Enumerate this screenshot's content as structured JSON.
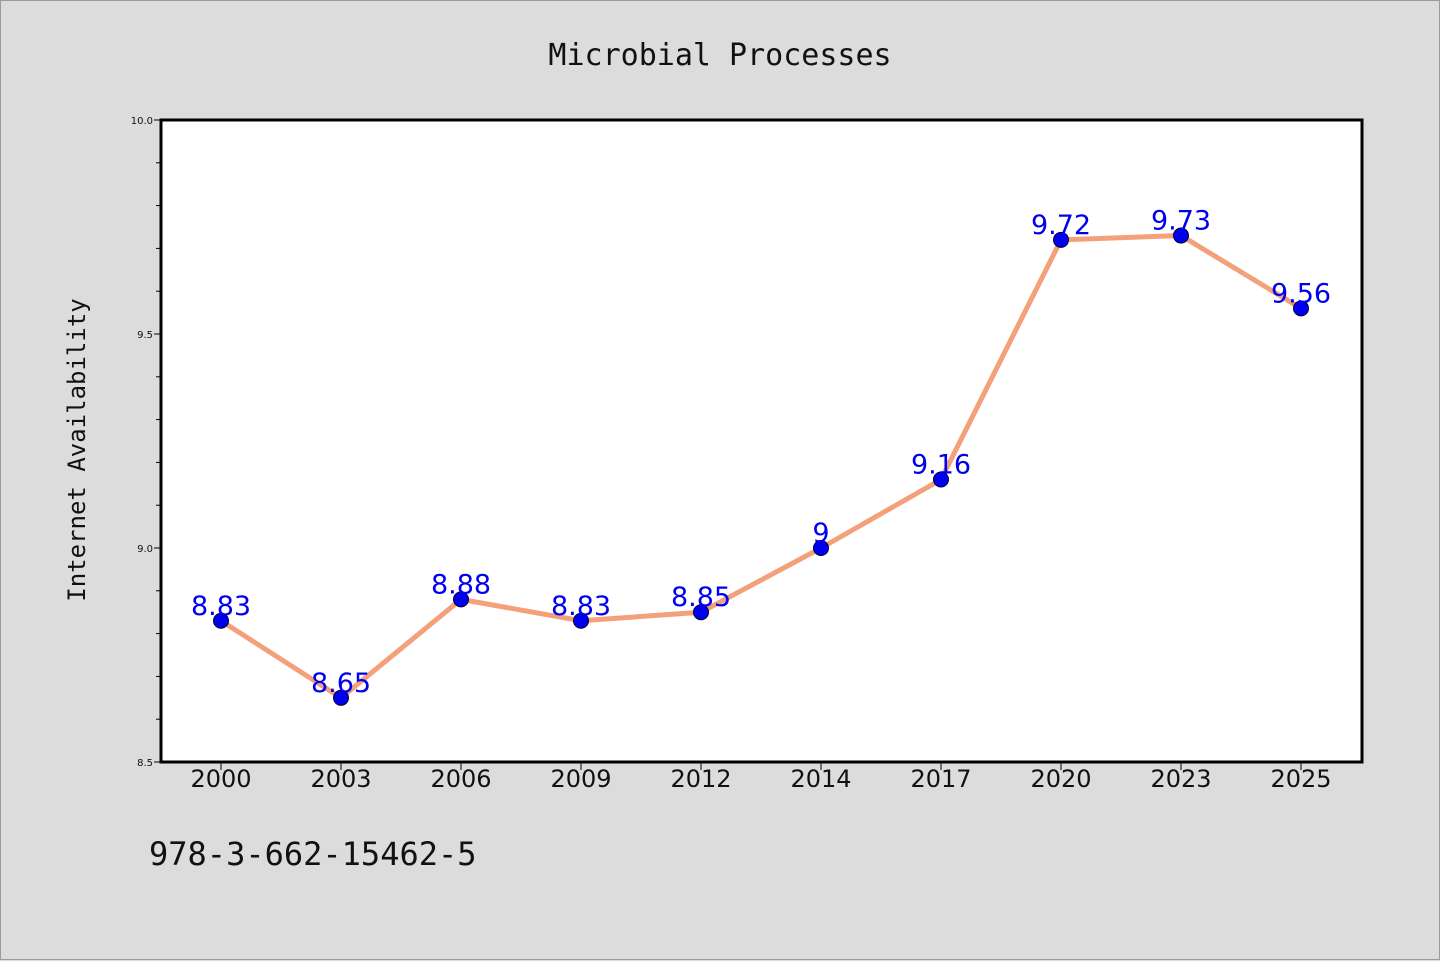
{
  "chart_data": {
    "type": "line",
    "title": "Microbial Processes",
    "xlabel": "",
    "ylabel": "Internet Availability",
    "categories": [
      "2000",
      "2003",
      "2006",
      "2009",
      "2012",
      "2014",
      "2017",
      "2020",
      "2023",
      "2025"
    ],
    "series": [
      {
        "values": [
          8.83,
          8.65,
          8.88,
          8.83,
          8.85,
          9.0,
          9.16,
          9.72,
          9.73,
          9.56
        ],
        "labels": [
          "8.83",
          "8.65",
          "8.88",
          "8.83",
          "8.85",
          "9",
          "9.16",
          "9.72",
          "9.73",
          "9.56"
        ],
        "line_color": "#f4a07a",
        "marker_color": "#0000ee",
        "label_color": "#0000ee"
      }
    ],
    "ylim": [
      8.5,
      10.0
    ],
    "yticks": [
      "8.5",
      "9.0",
      "9.5",
      "10.0"
    ],
    "grid": false,
    "legend": "none"
  },
  "footnote": "978-3-662-15462-5",
  "colors": {
    "background": "#dcdcdc",
    "plot_background": "#ffffff",
    "axis": "#000000"
  }
}
